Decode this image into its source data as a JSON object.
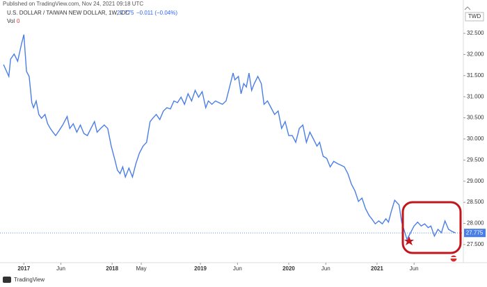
{
  "header": {
    "published": "Published on TradingView.com, Nov 24, 2021 09:18 UTC",
    "symbol": "U.S. DOLLAR / TAIWAN NEW DOLLAR, 1W, IDC",
    "change": "−0.011 (−0.04%)",
    "vol_label": "Vol",
    "vol_value": "0"
  },
  "footer": {
    "brand": "TradingView"
  },
  "chart_data": {
    "type": "line",
    "y_unit": "TWD",
    "grid": false,
    "xlim": [
      2016.73,
      2021.97
    ],
    "ylim": [
      27.12,
      33.29
    ],
    "xticks": [
      {
        "value": 2017.0,
        "label": "2017"
      },
      {
        "value": 2017.42,
        "label": "Jun"
      },
      {
        "value": 2018.0,
        "label": "2018"
      },
      {
        "value": 2018.33,
        "label": "May"
      },
      {
        "value": 2019.0,
        "label": "2019"
      },
      {
        "value": 2019.42,
        "label": "Jun"
      },
      {
        "value": 2020.0,
        "label": "2020"
      },
      {
        "value": 2020.42,
        "label": "Jun"
      },
      {
        "value": 2021.0,
        "label": "2021"
      },
      {
        "value": 2021.42,
        "label": "Jun"
      }
    ],
    "yticks": [
      {
        "value": 27.5,
        "label": "27.500"
      },
      {
        "value": 28.0,
        "label": "28.000"
      },
      {
        "value": 28.5,
        "label": "28.500"
      },
      {
        "value": 29.0,
        "label": "29.000"
      },
      {
        "value": 29.5,
        "label": "29.500"
      },
      {
        "value": 30.0,
        "label": "30.000"
      },
      {
        "value": 30.5,
        "label": "30.500"
      },
      {
        "value": 31.0,
        "label": "31.000"
      },
      {
        "value": 31.5,
        "label": "31.500"
      },
      {
        "value": 32.0,
        "label": "32.000"
      },
      {
        "value": 32.5,
        "label": "32.500"
      }
    ],
    "x": [
      2016.77,
      2016.83,
      2016.85,
      2016.89,
      2016.93,
      2016.97,
      2017.0,
      2017.03,
      2017.06,
      2017.09,
      2017.11,
      2017.14,
      2017.17,
      2017.2,
      2017.24,
      2017.27,
      2017.3,
      2017.33,
      2017.36,
      2017.4,
      2017.44,
      2017.49,
      2017.52,
      2017.56,
      2017.6,
      2017.64,
      2017.68,
      2017.72,
      2017.76,
      2017.8,
      2017.83,
      2017.87,
      2017.91,
      2017.95,
      2017.99,
      2018.03,
      2018.06,
      2018.09,
      2018.12,
      2018.15,
      2018.19,
      2018.23,
      2018.27,
      2018.31,
      2018.35,
      2018.39,
      2018.43,
      2018.46,
      2018.5,
      2018.54,
      2018.58,
      2018.62,
      2018.66,
      2018.7,
      2018.74,
      2018.78,
      2018.82,
      2018.86,
      2018.9,
      2018.94,
      2018.98,
      2019.02,
      2019.06,
      2019.09,
      2019.13,
      2019.17,
      2019.21,
      2019.25,
      2019.29,
      2019.33,
      2019.37,
      2019.39,
      2019.43,
      2019.46,
      2019.49,
      2019.52,
      2019.55,
      2019.58,
      2019.61,
      2019.65,
      2019.69,
      2019.72,
      2019.76,
      2019.8,
      2019.84,
      2019.88,
      2019.92,
      2019.96,
      2020.0,
      2020.04,
      2020.08,
      2020.12,
      2020.16,
      2020.2,
      2020.24,
      2020.28,
      2020.32,
      2020.35,
      2020.39,
      2020.43,
      2020.47,
      2020.51,
      2020.55,
      2020.59,
      2020.63,
      2020.67,
      2020.71,
      2020.75,
      2020.79,
      2020.83,
      2020.87,
      2020.91,
      2020.94,
      2020.98,
      2021.02,
      2021.06,
      2021.1,
      2021.13,
      2021.16,
      2021.2,
      2021.25,
      2021.28,
      2021.34,
      2021.38,
      2021.42,
      2021.46,
      2021.5,
      2021.54,
      2021.58,
      2021.61,
      2021.65,
      2021.69,
      2021.73,
      2021.77,
      2021.81,
      2021.85,
      2021.89
    ],
    "series": [
      {
        "name": "USD/TWD",
        "color": "#4a7ee6",
        "values": [
          31.76,
          31.48,
          31.89,
          32.01,
          31.84,
          32.22,
          32.47,
          31.6,
          31.48,
          30.86,
          30.74,
          30.9,
          30.58,
          30.49,
          30.58,
          30.36,
          30.25,
          30.16,
          30.08,
          30.2,
          30.33,
          30.53,
          30.25,
          30.36,
          30.16,
          30.33,
          30.13,
          30.08,
          30.25,
          30.41,
          30.16,
          30.25,
          30.33,
          30.25,
          29.83,
          29.51,
          29.26,
          29.18,
          29.34,
          29.1,
          29.31,
          29.1,
          29.42,
          29.67,
          29.83,
          29.92,
          30.41,
          30.49,
          30.58,
          30.46,
          30.66,
          30.74,
          30.71,
          30.9,
          30.86,
          30.99,
          30.82,
          31.07,
          30.9,
          31.15,
          30.99,
          31.12,
          30.74,
          30.9,
          30.82,
          30.9,
          30.86,
          30.82,
          30.9,
          31.23,
          31.56,
          31.4,
          31.48,
          31.07,
          31.31,
          31.23,
          31.56,
          31.15,
          31.31,
          31.48,
          31.31,
          30.82,
          30.9,
          30.74,
          30.58,
          30.66,
          30.25,
          30.41,
          30.08,
          30.08,
          29.92,
          30.25,
          30.33,
          29.92,
          30.16,
          30.0,
          29.83,
          29.92,
          29.59,
          29.54,
          29.34,
          29.47,
          29.42,
          29.38,
          29.34,
          29.18,
          28.93,
          28.77,
          28.52,
          28.6,
          28.35,
          28.19,
          28.11,
          27.99,
          28.06,
          27.99,
          28.11,
          28.03,
          28.27,
          28.55,
          28.44,
          28.03,
          27.62,
          27.78,
          27.94,
          28.03,
          27.94,
          27.99,
          27.9,
          27.94,
          27.7,
          27.86,
          27.78,
          28.06,
          27.86,
          27.81,
          27.775
        ]
      }
    ]
  }
}
